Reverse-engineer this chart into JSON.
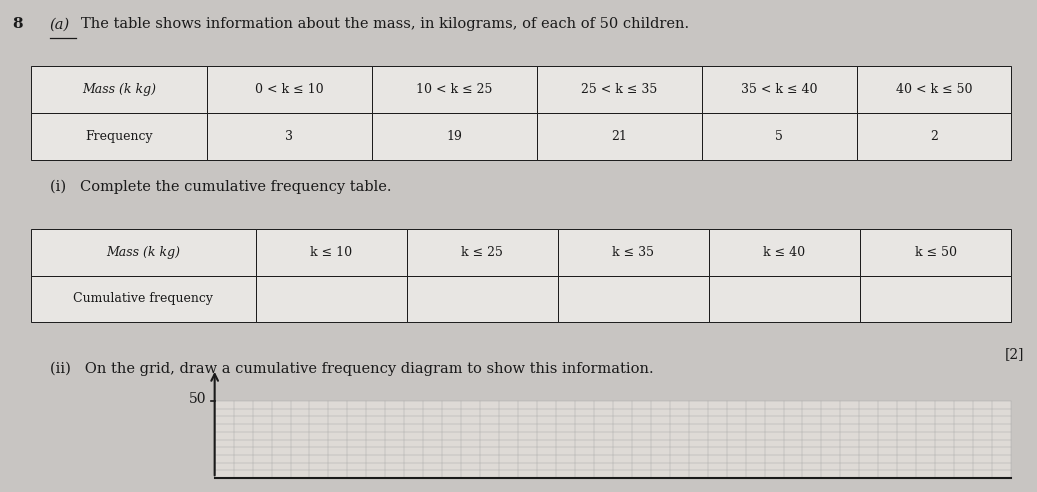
{
  "question_number": "8",
  "part_label": "(a)",
  "intro_text": "The table shows information about the mass, in kilograms, of each of 50 children.",
  "freq_headers": [
    "Mass (k kg)",
    "0 < k ≤ 10",
    "10 < k ≤ 25",
    "25 < k ≤ 35",
    "35 < k ≤ 40",
    "40 < k ≤ 50"
  ],
  "freq_row_label": "Frequency",
  "freq_values": [
    "3",
    "19",
    "21",
    "5",
    "2"
  ],
  "part_i_text": "(i)   Complete the cumulative frequency table.",
  "cum_headers": [
    "Mass (k kg)",
    "k ≤ 10",
    "k ≤ 25",
    "k ≤ 35",
    "k ≤ 40",
    "k ≤ 50"
  ],
  "cum_row_label": "Cumulative frequency",
  "part_ii_text": "(ii)   On the grid, draw a cumulative frequency diagram to show this information.",
  "mark": "[2]",
  "grid_ylabel": "50",
  "background_color": "#c8c5c2",
  "text_color": "#1a1a1a",
  "table_bg": "#e8e6e3",
  "grid_line_color": "#aaaaaa",
  "grid_bg": "#dedad6"
}
